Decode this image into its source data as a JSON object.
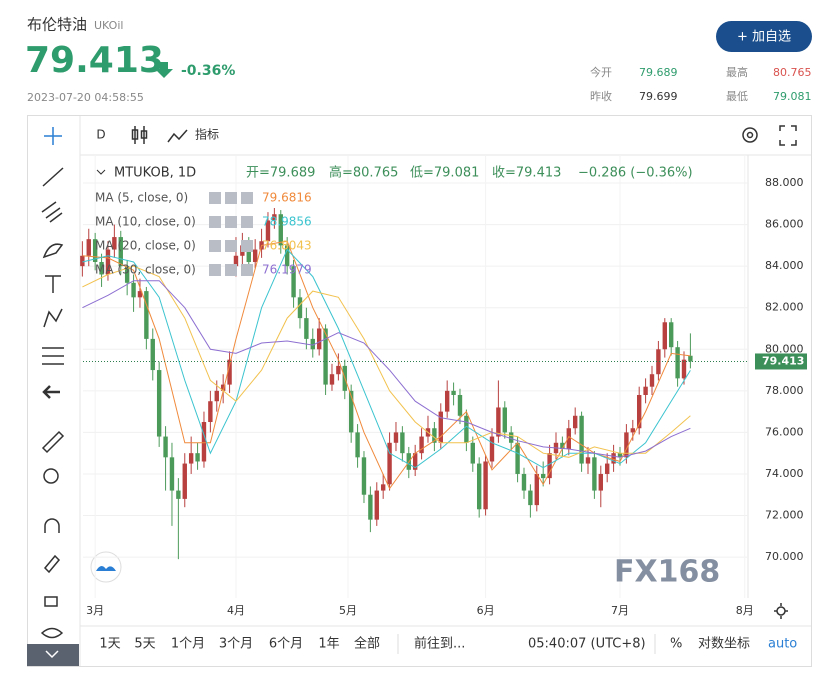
{
  "header": {
    "name": "布伦特油",
    "symbol": "UKOil",
    "price": "79.413",
    "change": "-0.36%",
    "time": "2023-07-20 04:58:55",
    "button": "+ 加自选"
  },
  "stats": [
    {
      "label": "今开",
      "value": "79.689"
    },
    {
      "label": "最高",
      "value": "80.765"
    },
    {
      "label": "昨收",
      "value": "79.699"
    },
    {
      "label": "最低",
      "value": "79.081"
    }
  ],
  "toolbar": {
    "interval": "D",
    "indicators": "指标"
  },
  "legend": {
    "symbol": "MTUKOB, 1D",
    "ohlc": [
      "开=79.689",
      "高=80.765",
      "低=79.081",
      "收=79.413",
      "−0.286 (−0.36%)"
    ]
  },
  "chart": {
    "type": "candlestick",
    "up_color": "#b8403f",
    "down_color": "#4c9a5a",
    "xlim": [
      -1.9,
      102
    ],
    "xticks": [
      {
        "value": 0,
        "label": "3月"
      },
      {
        "value": 22,
        "label": "4月"
      },
      {
        "value": 39.5,
        "label": "5月"
      },
      {
        "value": 61,
        "label": "6月"
      },
      {
        "value": 82,
        "label": "7月"
      },
      {
        "value": 101.5,
        "label": "8月"
      }
    ],
    "ylim": [
      68.03,
      89.35
    ],
    "yticks": [
      {
        "value": 70,
        "label": "70.000"
      },
      {
        "value": 72,
        "label": "72.000"
      },
      {
        "value": 74,
        "label": "74.000"
      },
      {
        "value": 76,
        "label": "76.000"
      },
      {
        "value": 78,
        "label": "78.000"
      },
      {
        "value": 80,
        "label": "80.000"
      },
      {
        "value": 82,
        "label": "82.000"
      },
      {
        "value": 84,
        "label": "84.000"
      },
      {
        "value": 86,
        "label": "86.000"
      },
      {
        "value": 88,
        "label": "88.000"
      }
    ],
    "x": [
      -2,
      -1,
      0,
      1,
      2,
      3,
      4,
      5,
      6,
      7,
      8,
      9,
      10,
      11,
      12,
      13,
      14,
      15,
      16,
      17,
      18,
      19,
      20,
      21,
      22,
      23,
      24,
      25,
      26,
      27,
      28,
      29,
      30,
      31,
      32,
      33,
      34,
      35,
      36,
      37,
      38,
      39,
      40,
      41,
      42,
      43,
      44,
      45,
      46,
      47,
      48,
      49,
      50,
      51,
      52,
      53,
      54,
      55,
      56,
      57,
      58,
      59,
      60,
      61,
      62,
      63,
      64,
      65,
      66,
      67,
      68,
      69,
      70,
      71,
      72,
      73,
      74,
      75,
      76,
      77,
      78,
      79,
      80,
      81,
      82,
      83,
      84,
      85,
      86,
      87,
      88,
      89,
      90,
      91,
      92,
      93
    ],
    "candles": [
      [
        84.0,
        85.2,
        83.5,
        84.5
      ],
      [
        84.5,
        85.8,
        84.0,
        85.3
      ],
      [
        85.3,
        85.6,
        83.8,
        84.2
      ],
      [
        84.2,
        84.6,
        83.0,
        83.6
      ],
      [
        83.6,
        85.2,
        83.3,
        84.8
      ],
      [
        84.8,
        86.0,
        84.4,
        85.4
      ],
      [
        85.4,
        85.7,
        83.6,
        84.0
      ],
      [
        84.0,
        84.3,
        82.6,
        83.2
      ],
      [
        83.2,
        83.6,
        81.8,
        82.5
      ],
      [
        82.5,
        83.4,
        82.0,
        82.8
      ],
      [
        82.8,
        83.0,
        80.0,
        80.5
      ],
      [
        80.5,
        81.0,
        78.5,
        79.0
      ],
      [
        79.0,
        79.4,
        75.3,
        75.8
      ],
      [
        75.8,
        76.3,
        73.2,
        74.8
      ],
      [
        74.8,
        75.5,
        71.5,
        73.2
      ],
      [
        73.2,
        73.8,
        69.9,
        72.8
      ],
      [
        72.8,
        75.0,
        72.4,
        74.5
      ],
      [
        74.5,
        75.8,
        74.0,
        75.0
      ],
      [
        75.0,
        75.5,
        74.2,
        74.6
      ],
      [
        74.6,
        77.0,
        74.3,
        76.5
      ],
      [
        76.5,
        78.0,
        76.0,
        77.5
      ],
      [
        77.5,
        78.5,
        77.0,
        78.0
      ],
      [
        78.0,
        78.8,
        77.4,
        78.3
      ],
      [
        78.3,
        79.9,
        77.9,
        79.5
      ],
      [
        84.0,
        85.4,
        83.5,
        84.5
      ],
      [
        84.5,
        85.6,
        84.0,
        85.0
      ],
      [
        85.0,
        85.4,
        83.8,
        84.2
      ],
      [
        84.2,
        85.3,
        83.9,
        84.8
      ],
      [
        84.8,
        85.8,
        84.4,
        85.2
      ],
      [
        85.2,
        86.6,
        84.9,
        86.2
      ],
      [
        86.2,
        86.8,
        85.8,
        86.5
      ],
      [
        86.5,
        86.7,
        84.6,
        85.0
      ],
      [
        85.0,
        85.4,
        83.6,
        84.0
      ],
      [
        84.0,
        84.3,
        82.0,
        82.5
      ],
      [
        82.5,
        82.9,
        81.0,
        81.5
      ],
      [
        81.5,
        82.0,
        80.0,
        80.5
      ],
      [
        80.5,
        81.0,
        79.6,
        80.0
      ],
      [
        80.0,
        81.5,
        79.7,
        81.0
      ],
      [
        81.0,
        81.2,
        77.8,
        78.3
      ],
      [
        78.3,
        79.3,
        78.0,
        78.8
      ],
      [
        78.8,
        79.8,
        78.5,
        79.2
      ],
      [
        79.2,
        79.5,
        77.6,
        78.0
      ],
      [
        78.0,
        78.3,
        75.5,
        76.0
      ],
      [
        76.0,
        76.4,
        74.3,
        74.8
      ],
      [
        74.8,
        75.1,
        72.6,
        73.0
      ],
      [
        73.0,
        73.4,
        71.2,
        71.8
      ],
      [
        71.8,
        73.6,
        71.5,
        73.2
      ],
      [
        73.2,
        74.0,
        72.8,
        73.5
      ],
      [
        73.5,
        76.0,
        73.2,
        75.5
      ],
      [
        75.5,
        76.5,
        75.1,
        76.0
      ],
      [
        76.0,
        76.3,
        74.6,
        75.0
      ],
      [
        75.0,
        75.3,
        73.8,
        74.2
      ],
      [
        74.2,
        75.4,
        73.9,
        75.0
      ],
      [
        75.0,
        76.2,
        74.7,
        75.8
      ],
      [
        75.8,
        76.8,
        75.5,
        76.2
      ],
      [
        76.2,
        76.5,
        75.1,
        75.5
      ],
      [
        75.5,
        77.4,
        75.2,
        77.0
      ],
      [
        77.0,
        78.5,
        76.7,
        78.0
      ],
      [
        78.0,
        78.4,
        77.3,
        77.8
      ],
      [
        77.8,
        78.1,
        76.4,
        76.8
      ],
      [
        76.8,
        77.1,
        75.1,
        75.5
      ],
      [
        75.5,
        75.8,
        74.1,
        74.5
      ],
      [
        74.5,
        74.8,
        71.9,
        72.3
      ],
      [
        72.3,
        74.9,
        72.0,
        74.6
      ],
      [
        74.6,
        76.2,
        74.3,
        75.8
      ],
      [
        75.8,
        78.5,
        75.5,
        77.2
      ],
      [
        77.2,
        77.5,
        75.7,
        76.0
      ],
      [
        76.0,
        76.3,
        75.1,
        75.5
      ],
      [
        75.5,
        75.8,
        73.6,
        74.0
      ],
      [
        74.0,
        74.3,
        72.8,
        73.2
      ],
      [
        73.2,
        73.5,
        71.9,
        72.5
      ],
      [
        72.5,
        74.4,
        72.2,
        74.0
      ],
      [
        74.0,
        74.6,
        73.4,
        73.8
      ],
      [
        73.8,
        75.4,
        73.5,
        75.0
      ],
      [
        75.0,
        76.0,
        74.7,
        75.5
      ],
      [
        75.5,
        75.8,
        74.8,
        75.2
      ],
      [
        75.2,
        76.6,
        74.9,
        76.2
      ],
      [
        76.2,
        77.2,
        75.9,
        76.8
      ],
      [
        76.8,
        77.0,
        74.1,
        74.5
      ],
      [
        74.5,
        75.3,
        74.0,
        74.8
      ],
      [
        74.8,
        75.1,
        72.8,
        73.2
      ],
      [
        73.2,
        74.4,
        72.4,
        74.0
      ],
      [
        74.0,
        75.0,
        73.6,
        74.5
      ],
      [
        74.5,
        75.4,
        74.1,
        75.0
      ],
      [
        75.0,
        75.3,
        74.4,
        74.8
      ],
      [
        74.8,
        76.4,
        74.5,
        76.0
      ],
      [
        76.0,
        76.6,
        75.6,
        76.2
      ],
      [
        76.2,
        78.2,
        75.9,
        77.8
      ],
      [
        77.8,
        78.6,
        77.4,
        78.2
      ],
      [
        78.2,
        79.2,
        77.8,
        78.8
      ],
      [
        78.8,
        80.4,
        78.5,
        80.0
      ],
      [
        80.0,
        81.5,
        79.6,
        81.3
      ],
      [
        81.3,
        81.5,
        79.7,
        80.1
      ],
      [
        80.1,
        80.4,
        78.2,
        78.6
      ],
      [
        78.6,
        79.9,
        78.3,
        79.5
      ],
      [
        79.689,
        80.765,
        79.081,
        79.413
      ]
    ],
    "ma_x": [
      -2,
      2,
      6,
      10,
      14,
      18,
      22,
      26,
      30,
      34,
      38,
      42,
      46,
      50,
      54,
      58,
      62,
      66,
      70,
      74,
      78,
      82,
      86,
      90,
      93
    ],
    "ma": [
      {
        "name": "MA (5, close, 0)",
        "color": "#f08a3c",
        "value_label": "79.6816",
        "values": [
          84.5,
          84.4,
          83.8,
          80.5,
          75.5,
          75.5,
          80.5,
          85.0,
          85.2,
          82.0,
          79.5,
          76.0,
          73.3,
          75.0,
          75.8,
          77.0,
          74.2,
          75.5,
          73.5,
          75.8,
          75.0,
          74.6,
          77.0,
          79.8,
          79.6816
        ]
      },
      {
        "name": "MA (10, close, 0)",
        "color": "#3cc4cf",
        "value_label": "78.9856",
        "values": [
          84.2,
          84.5,
          84.2,
          82.5,
          78.5,
          75.0,
          77.5,
          82.0,
          84.8,
          83.5,
          81.0,
          78.0,
          75.0,
          74.3,
          75.2,
          76.3,
          75.5,
          75.0,
          74.3,
          75.0,
          75.0,
          74.5,
          75.5,
          77.5,
          78.9856
        ]
      },
      {
        "name": "MA (20, close, 0)",
        "color": "#f2c24f",
        "value_label": "76.8043",
        "values": [
          83.0,
          83.6,
          84.0,
          83.5,
          81.5,
          78.5,
          77.5,
          79.0,
          81.5,
          82.8,
          82.5,
          80.5,
          78.0,
          76.5,
          75.5,
          75.5,
          76.0,
          75.8,
          75.0,
          74.8,
          75.3,
          75.0,
          75.0,
          76.0,
          76.8043
        ]
      },
      {
        "name": "MA (30, close, 0)",
        "color": "#8d6fd1",
        "value_label": "76.1979",
        "values": [
          82.0,
          82.6,
          83.3,
          83.3,
          82.0,
          80.0,
          79.8,
          80.3,
          80.4,
          80.2,
          80.8,
          80.3,
          79.0,
          77.5,
          76.7,
          76.5,
          76.0,
          75.6,
          75.3,
          75.2,
          75.0,
          74.8,
          75.1,
          75.8,
          76.1979
        ]
      }
    ]
  },
  "watermark": "FX168",
  "bottom": {
    "ranges": [
      "1天",
      "5天",
      "1个月",
      "3个月",
      "6个月",
      "1年",
      "全部"
    ],
    "goto": "前往到...",
    "clock": "05:40:07 (UTC+8)",
    "percent": "%",
    "log": "对数坐标",
    "auto": "auto"
  }
}
